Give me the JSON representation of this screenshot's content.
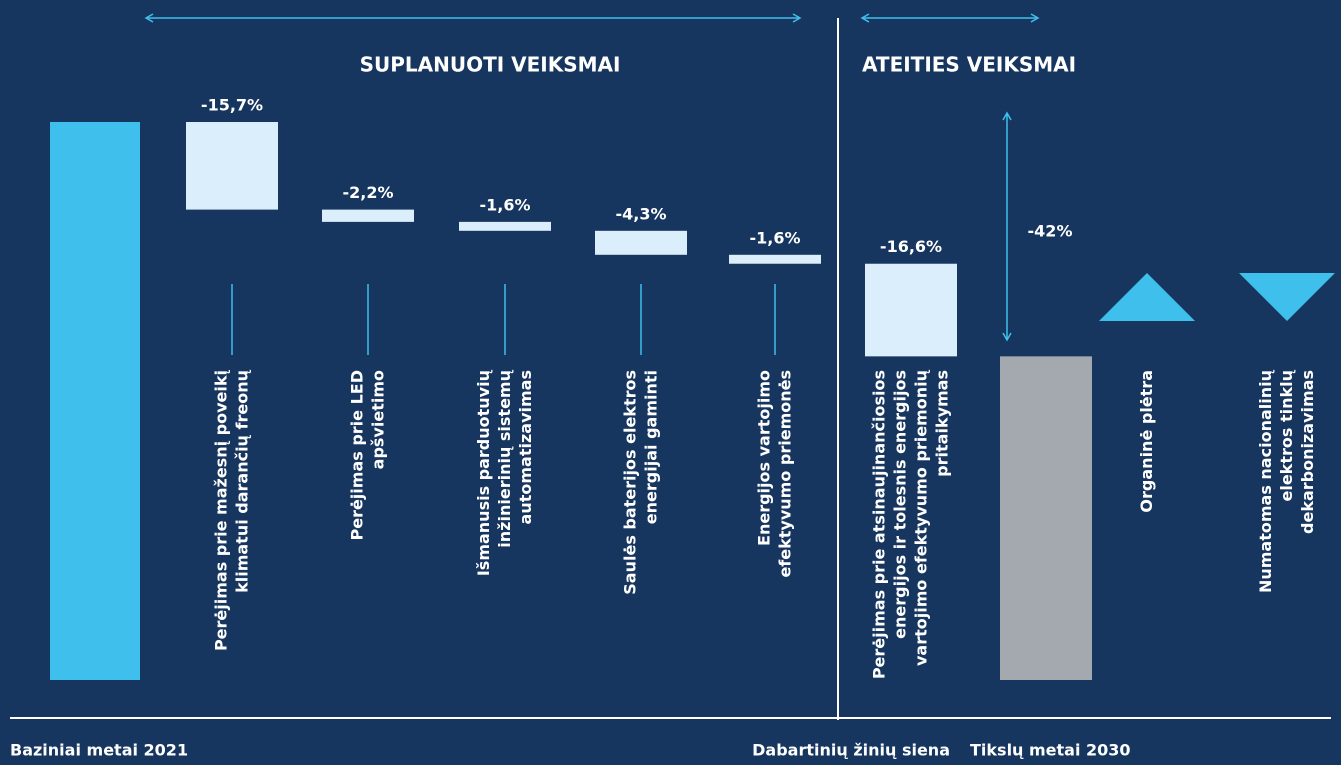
{
  "chart_data": {
    "type": "waterfall",
    "sections": [
      {
        "title": "SUPLANUOTI VEIKSMAI"
      },
      {
        "title": "ATEITIES VEIKSMAI"
      }
    ],
    "base": {
      "label": "Baziniai metai 2021",
      "value": 100
    },
    "categories": [
      "Perėjimas prie mažesnį poveikį\nklimatui darančių freonų",
      "Perėjimas prie LED\napšvietimo",
      "Išmanusis parduotuvių\ninžinierinių sistemų\nautomatizavimas",
      "Saulės baterijos elektros\nenergijai gaminti",
      "Energijos vartojimo\nefektyvumo priemonės",
      "Perėjimas prie atsinaujinančiosios\nenergijos ir tolesnis energijos\nvartojimo efektyvumo priemonių\npritaikymas"
    ],
    "values": [
      -15.7,
      -2.2,
      -1.6,
      -4.3,
      -1.6,
      -16.6
    ],
    "value_labels": [
      "-15,7%",
      "-2,2%",
      "-1,6%",
      "-4,3%",
      "-1,6%",
      "-16,6%"
    ],
    "target": {
      "label": "Tikslų metai 2030",
      "value": 58
    },
    "total_change": {
      "value": -42,
      "label": "-42%"
    },
    "wall_label": "Dabartinių žinių siena",
    "markers": [
      {
        "label": "Organinė plėtra",
        "direction": "up"
      },
      {
        "label": "Numatomas nacionalinių\nelektros tinklų\ndekarbonizavimas",
        "direction": "down"
      }
    ],
    "base_color": "#3fbfec",
    "step_color": "#dbeefb",
    "target_color": "#a3a9ae"
  }
}
